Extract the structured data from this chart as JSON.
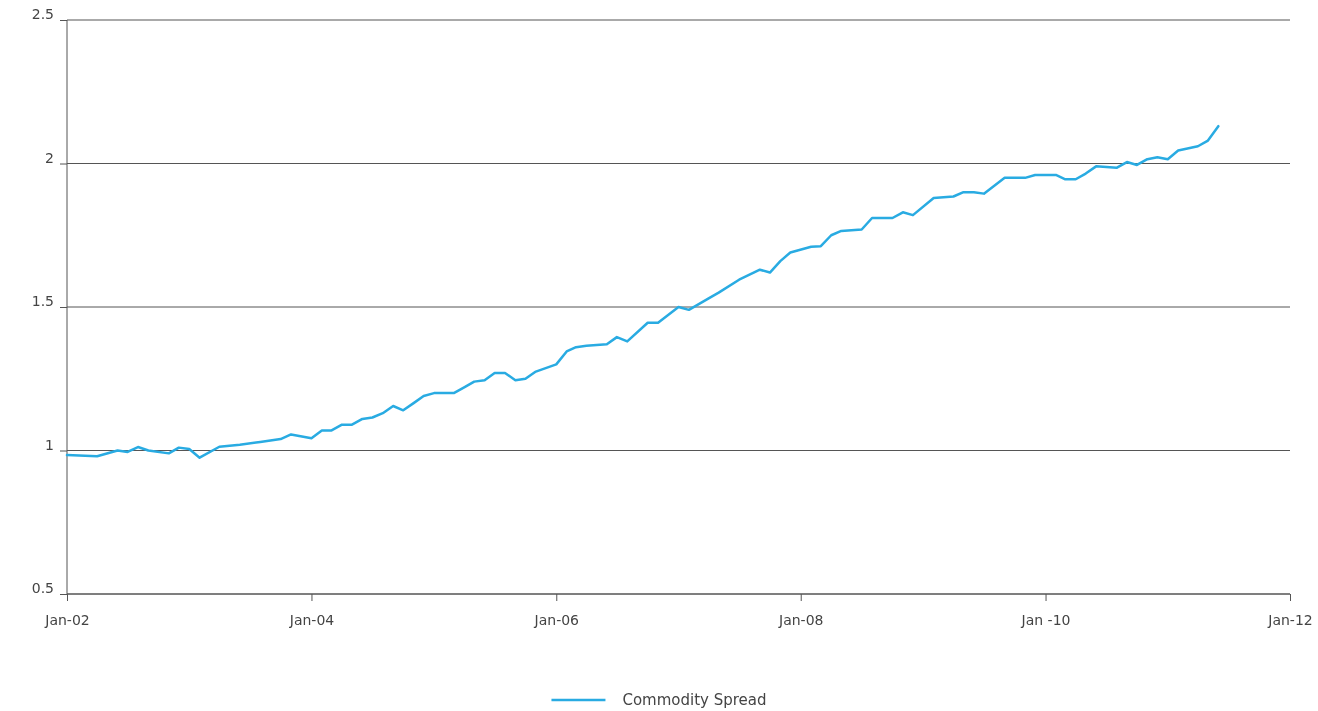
{
  "chart_data": {
    "type": "line",
    "x": [
      "2002-01",
      "2002-04",
      "2002-06",
      "2002-07",
      "2002-08",
      "2002-09",
      "2002-11",
      "2002-12",
      "2003-01",
      "2003-02",
      "2003-04",
      "2003-06",
      "2003-08",
      "2003-10",
      "2003-11",
      "2004-01",
      "2004-02",
      "2004-03",
      "2004-04",
      "2004-05",
      "2004-06",
      "2004-07",
      "2004-08",
      "2004-09",
      "2004-10",
      "2004-11",
      "2004-12",
      "2005-01",
      "2005-02",
      "2005-03",
      "2005-04",
      "2005-05",
      "2005-06",
      "2005-07",
      "2005-08",
      "2005-09",
      "2005-10",
      "2005-11",
      "2006-01",
      "2006-02",
      "2006-03",
      "2006-04",
      "2006-06",
      "2006-07",
      "2006-08",
      "2006-10",
      "2006-11",
      "2007-01",
      "2007-02",
      "2007-04",
      "2007-05",
      "2007-07",
      "2007-09",
      "2007-10",
      "2007-11",
      "2007-12",
      "2008-02",
      "2008-03",
      "2008-04",
      "2008-05",
      "2008-07",
      "2008-08",
      "2008-10",
      "2008-11",
      "2008-12",
      "2009-02",
      "2009-04",
      "2009-05",
      "2009-06",
      "2009-07",
      "2009-09",
      "2009-10",
      "2009-11",
      "2009-12",
      "2010-02",
      "2010-03",
      "2010-04",
      "2010-05",
      "2010-06",
      "2010-08",
      "2010-09",
      "2010-10",
      "2010-11",
      "2010-12",
      "2011-01",
      "2011-02",
      "2011-04",
      "2011-05",
      "2011-06"
    ],
    "series": [
      {
        "name": "Commodity Spread",
        "color": "#29abe2",
        "values": [
          0.984,
          0.98,
          1.0,
          0.995,
          1.012,
          1.0,
          0.99,
          1.01,
          1.005,
          0.975,
          1.013,
          1.02,
          1.03,
          1.04,
          1.056,
          1.043,
          1.07,
          1.07,
          1.09,
          1.09,
          1.11,
          1.115,
          1.13,
          1.155,
          1.14,
          1.165,
          1.19,
          1.2,
          1.2,
          1.2,
          1.22,
          1.24,
          1.245,
          1.27,
          1.27,
          1.245,
          1.25,
          1.275,
          1.3,
          1.345,
          1.36,
          1.365,
          1.37,
          1.395,
          1.38,
          1.445,
          1.445,
          1.5,
          1.49,
          1.53,
          1.55,
          1.595,
          1.63,
          1.62,
          1.66,
          1.69,
          1.71,
          1.712,
          1.75,
          1.765,
          1.77,
          1.81,
          1.81,
          1.83,
          1.82,
          1.88,
          1.885,
          1.9,
          1.9,
          1.895,
          1.95,
          1.95,
          1.95,
          1.96,
          1.96,
          1.945,
          1.945,
          1.965,
          1.99,
          1.985,
          2.005,
          1.995,
          2.015,
          2.022,
          2.015,
          2.045,
          2.06,
          2.08,
          2.13
        ]
      }
    ],
    "xlim": [
      "2002-01",
      "2012-01"
    ],
    "xticks": [
      {
        "value": "2002-01",
        "label": "Jan-02"
      },
      {
        "value": "2004-01",
        "label": "Jan-04"
      },
      {
        "value": "2006-01",
        "label": "Jan-06"
      },
      {
        "value": "2008-01",
        "label": "Jan-08"
      },
      {
        "value": "2010-01",
        "label": "Jan -10"
      },
      {
        "value": "2012-01",
        "label": "Jan-12"
      }
    ],
    "ylim": [
      0.5,
      2.5
    ],
    "yticks": [
      0.5,
      1,
      1.5,
      2,
      2.5
    ],
    "grid": "y",
    "legend": "bottom",
    "line_style": "solid",
    "marker": "none"
  }
}
